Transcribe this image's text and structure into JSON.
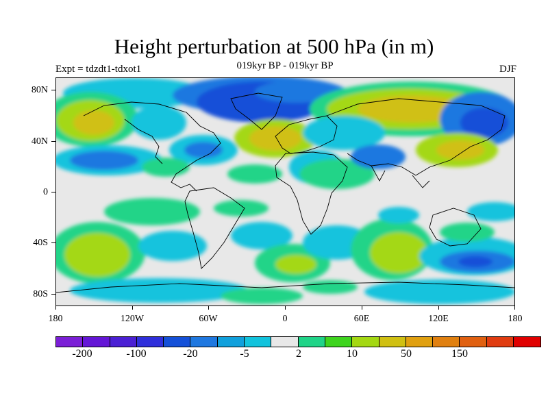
{
  "title": "Height perturbation at 500 hPa (in m)",
  "subtitle_left": "Expt = tdzdt1-tdxot1",
  "subtitle_center": "019kyr BP - 019kyr BP",
  "subtitle_right": "DJF",
  "lat_labels": [
    "80N",
    "40N",
    "0",
    "40S",
    "80S"
  ],
  "lon_labels": [
    "180",
    "120W",
    "60W",
    "0",
    "60E",
    "120E",
    "180"
  ],
  "colorbar": {
    "colors": [
      "#7b1fd6",
      "#6416d6",
      "#4b20d4",
      "#2f2fdb",
      "#1450d8",
      "#1f78e0",
      "#10a0dc",
      "#12c3dd",
      "#e8e8e8",
      "#20d488",
      "#3ed41e",
      "#a4d813",
      "#d0c012",
      "#e0a010",
      "#e08010",
      "#e06010",
      "#e03c10",
      "#e00000"
    ],
    "labels": [
      "-200",
      "-100",
      "-20",
      "-5",
      "2",
      "10",
      "50",
      "150"
    ]
  }
}
